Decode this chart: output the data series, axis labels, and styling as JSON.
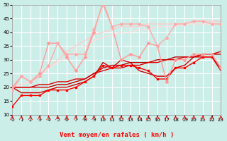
{
  "xlabel": "Vent moyen/en rafales ( km/h )",
  "xlim": [
    0,
    23
  ],
  "ylim": [
    10,
    50
  ],
  "yticks": [
    10,
    15,
    20,
    25,
    30,
    35,
    40,
    45,
    50
  ],
  "xticks": [
    0,
    1,
    2,
    3,
    4,
    5,
    6,
    7,
    8,
    9,
    10,
    11,
    12,
    13,
    14,
    15,
    16,
    17,
    18,
    19,
    20,
    21,
    22,
    23
  ],
  "bg_color": "#cceee8",
  "grid_color": "#ffffff",
  "series": [
    {
      "y": [
        13,
        17,
        17,
        17,
        19,
        19,
        19,
        20,
        22,
        24,
        28,
        27,
        28,
        28,
        27,
        26,
        23,
        23,
        27,
        27,
        29,
        31,
        31,
        27
      ],
      "color": "#ff0000",
      "lw": 1.0,
      "marker": "s",
      "ms": 2.0,
      "zorder": 5
    },
    {
      "y": [
        20,
        18,
        18,
        18,
        19,
        20,
        20,
        21,
        22,
        24,
        29,
        27,
        30,
        29,
        26,
        25,
        24,
        24,
        27,
        28,
        31,
        31,
        31,
        26
      ],
      "color": "#cc0000",
      "lw": 1.0,
      "marker": null,
      "ms": 0,
      "zorder": 4
    },
    {
      "y": [
        20,
        20,
        20,
        20,
        20,
        21,
        21,
        22,
        23,
        25,
        27,
        28,
        28,
        29,
        29,
        29,
        30,
        30,
        31,
        31,
        31,
        32,
        32,
        32
      ],
      "color": "#bb0000",
      "lw": 1.0,
      "marker": null,
      "ms": 0,
      "zorder": 3
    },
    {
      "y": [
        20,
        20,
        20,
        21,
        21,
        22,
        22,
        23,
        23,
        25,
        26,
        27,
        27,
        28,
        28,
        29,
        29,
        30,
        30,
        31,
        31,
        32,
        32,
        33
      ],
      "color": "#dd0000",
      "lw": 1.0,
      "marker": null,
      "ms": 0,
      "zorder": 3
    },
    {
      "y": [
        20,
        24,
        22,
        25,
        36,
        36,
        31,
        26,
        31,
        40,
        51,
        42,
        30,
        32,
        31,
        36,
        35,
        22,
        30,
        30,
        32,
        32,
        32,
        27
      ],
      "color": "#ff9999",
      "lw": 1.0,
      "marker": "D",
      "ms": 2.0,
      "zorder": 5
    },
    {
      "y": [
        19,
        24,
        22,
        24,
        28,
        36,
        32,
        32,
        32,
        41,
        50,
        42,
        43,
        43,
        43,
        42,
        35,
        38,
        43,
        43,
        44,
        44,
        43,
        43
      ],
      "color": "#ffaaaa",
      "lw": 1.0,
      "marker": "D",
      "ms": 2.0,
      "zorder": 5
    },
    {
      "y": [
        20,
        21,
        22,
        24,
        27,
        30,
        33,
        35,
        37,
        39,
        40,
        41,
        42,
        42,
        42,
        43,
        43,
        43,
        43,
        43,
        44,
        44,
        44,
        44
      ],
      "color": "#ffcccc",
      "lw": 1.0,
      "marker": null,
      "ms": 0,
      "zorder": 2
    },
    {
      "y": [
        20,
        21,
        22,
        24,
        27,
        29,
        31,
        33,
        35,
        37,
        38,
        39,
        40,
        40,
        41,
        41,
        42,
        42,
        42,
        43,
        43,
        43,
        43,
        43
      ],
      "color": "#ffdddd",
      "lw": 1.0,
      "marker": null,
      "ms": 0,
      "zorder": 2
    }
  ],
  "tick_fontsize": 5.0,
  "label_fontsize": 6.5
}
